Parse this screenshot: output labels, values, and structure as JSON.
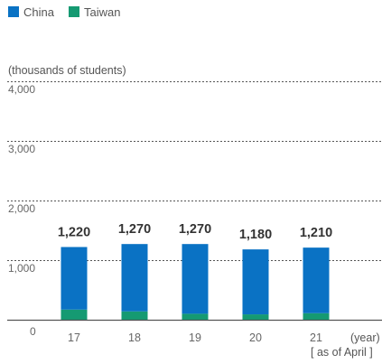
{
  "chart_data": {
    "type": "bar",
    "stacked": true,
    "legend": {
      "placement": "top-left"
    },
    "series": [
      {
        "name": "China",
        "color": "#0a72c4",
        "values": [
          1050,
          1130,
          1170,
          1090,
          1100
        ]
      },
      {
        "name": "Taiwan",
        "color": "#159a72",
        "values": [
          170,
          140,
          100,
          90,
          110
        ]
      }
    ],
    "categories": [
      "17",
      "18",
      "19",
      "20",
      "21"
    ],
    "totals": [
      "1,220",
      "1,270",
      "1,270",
      "1,180",
      "1,210"
    ],
    "yticks": [
      {
        "value": 0,
        "label": "0"
      },
      {
        "value": 1000,
        "label": "1,000"
      },
      {
        "value": 2000,
        "label": "2,000"
      },
      {
        "value": 3000,
        "label": "3,000"
      },
      {
        "value": 4000,
        "label": "4,000"
      }
    ],
    "ylim": [
      0,
      4000
    ],
    "ylabel": "(thousands of students)",
    "xlabel": "(year)",
    "note": "[ as of April ]",
    "grid": true
  }
}
